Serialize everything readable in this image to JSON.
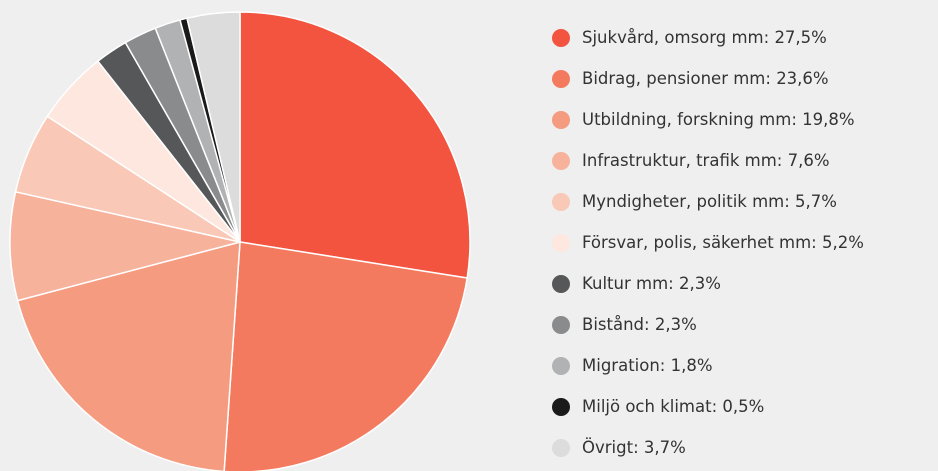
{
  "chart_data": {
    "type": "pie",
    "categories": [
      "Sjukvård, omsorg mm:",
      "Bidrag, pensioner mm:",
      "Utbildning, forskning mm:",
      "Infrastruktur, trafik mm:",
      "Myndigheter, politik mm:",
      "Försvar, polis, säkerhet mm:",
      "Kultur mm:",
      "Bistånd:",
      "Migration:",
      "Miljö och klimat:",
      "Övrigt:"
    ],
    "values": [
      27.5,
      23.6,
      19.8,
      7.6,
      5.7,
      5.2,
      2.3,
      2.3,
      1.8,
      0.5,
      3.7
    ],
    "value_labels": [
      "27,5%",
      "23,6%",
      "19,8%",
      "7,6%",
      "5,7%",
      "5,2%",
      "2,3%",
      "2,3%",
      "1,8%",
      "0,5%",
      "3,7%"
    ],
    "colors": [
      "#f25440",
      "#f47a5f",
      "#f59b80",
      "#f7b29b",
      "#f9c8b7",
      "#fde7df",
      "#555759",
      "#8a8b8d",
      "#b1b2b3",
      "#1a1a1a",
      "#dcdcdd"
    ],
    "legend": "right"
  }
}
